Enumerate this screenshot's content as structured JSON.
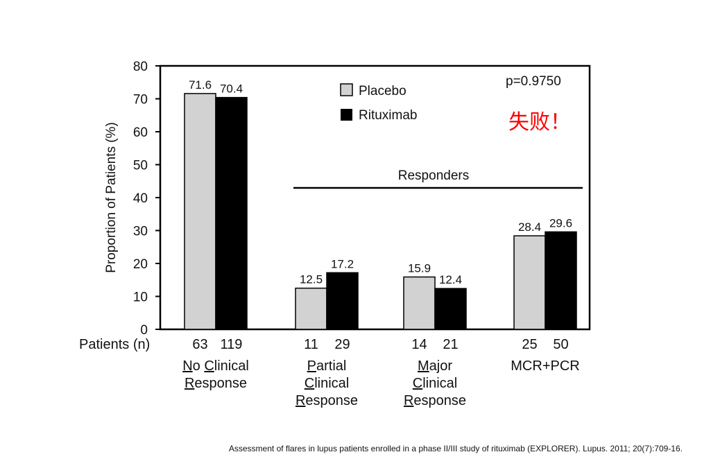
{
  "chart_data": {
    "type": "bar",
    "ylabel": "Proportion of Patients (%)",
    "ylim": [
      0,
      80
    ],
    "yticks": [
      0,
      10,
      20,
      30,
      40,
      50,
      60,
      70,
      80
    ],
    "categories": [
      {
        "lines": [
          [
            "N",
            "o ",
            "C",
            "linical"
          ],
          [
            "R",
            "esponse"
          ]
        ]
      },
      {
        "lines": [
          [
            "P",
            "artial"
          ],
          [
            "C",
            "linical"
          ],
          [
            "R",
            "esponse"
          ]
        ]
      },
      {
        "lines": [
          [
            "M",
            "ajor"
          ],
          [
            "C",
            "linical"
          ],
          [
            "R",
            "esponse"
          ]
        ]
      },
      {
        "lines": [
          [
            "",
            "MCR+PCR"
          ]
        ]
      }
    ],
    "series": [
      {
        "name": "Placebo",
        "color": "#d2d2d2",
        "values": [
          71.6,
          12.5,
          15.9,
          28.4
        ],
        "labels": [
          "71.6",
          "12.5",
          "15.9",
          "28.4"
        ],
        "n": [
          "63",
          "11",
          "14",
          "25"
        ]
      },
      {
        "name": "Rituximab",
        "color": "#000000",
        "values": [
          70.4,
          17.2,
          12.4,
          29.6
        ],
        "labels": [
          "70.4",
          "17.2",
          "12.4",
          "29.6"
        ],
        "n": [
          "119",
          "29",
          "21",
          "50"
        ]
      }
    ],
    "n_row_label": "Patients (n)",
    "bracket_label": "Responders",
    "p_value": "p=0.9750",
    "legend_position": "top-center",
    "grid": false
  },
  "annotation": "失败！",
  "caption": "Assessment of flares in lupus patients enrolled in a phase II/III study of rituximab (EXPLORER). Lupus. 2011; 20(7):709-16."
}
